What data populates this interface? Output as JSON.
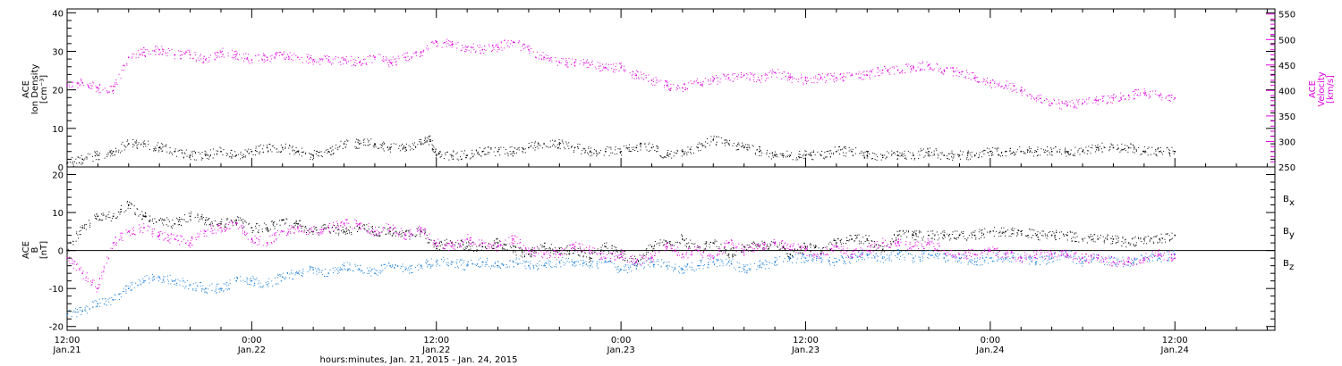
{
  "chart_data": [
    {
      "panel": "top",
      "type": "scatter",
      "xlabel": "hours:minutes, Jan. 21, 2015 - Jan. 24, 2015",
      "x_ticks": [
        {
          "time": "12:00",
          "date": "Jan.21",
          "hours": 0
        },
        {
          "time": "0:00",
          "date": "Jan.22",
          "hours": 12
        },
        {
          "time": "12:00",
          "date": "Jan.22",
          "hours": 24
        },
        {
          "time": "0:00",
          "date": "Jan.23",
          "hours": 36
        },
        {
          "time": "12:00",
          "date": "Jan.23",
          "hours": 48
        },
        {
          "time": "0:00",
          "date": "Jan.24",
          "hours": 60
        },
        {
          "time": "12:00",
          "date": "Jan.24",
          "hours": 72
        }
      ],
      "xlim_hours": [
        0,
        78.5
      ],
      "left_axis": {
        "title_lines": [
          "ACE",
          "Ion Density",
          "[cm⁻³]"
        ],
        "ylim": [
          0,
          41
        ],
        "ticks": [
          0,
          10,
          20,
          30,
          40
        ],
        "color": "#000000"
      },
      "right_axis": {
        "title_lines": [
          "ACE",
          "Velocity",
          "[km/s]"
        ],
        "ylim": [
          250,
          560
        ],
        "ticks": [
          250,
          300,
          350,
          400,
          450,
          500,
          550
        ],
        "color": "#e000e0"
      },
      "series": [
        {
          "name": "Ion Density",
          "axis": "left",
          "color": "#000000",
          "x_hours": [
            0,
            1,
            2,
            3,
            4,
            5,
            6,
            7,
            8,
            9,
            10,
            11,
            12,
            13,
            14,
            15,
            16,
            17,
            18,
            19,
            20,
            21,
            22,
            23,
            23.6,
            24,
            25,
            26,
            27,
            28,
            29,
            30,
            31,
            32,
            33,
            34,
            35,
            36,
            37,
            38,
            39,
            40,
            41,
            42,
            43,
            44,
            45,
            46,
            47,
            48,
            49,
            50,
            51,
            52,
            53,
            54,
            55,
            56,
            57,
            58,
            59,
            60,
            61,
            62,
            63,
            64,
            65,
            66,
            67,
            68,
            69,
            70,
            71,
            72
          ],
          "values": [
            1,
            2,
            3,
            4,
            6,
            6,
            5,
            4,
            3,
            3,
            4,
            3,
            4,
            5,
            5,
            4,
            3,
            4,
            6,
            6,
            6,
            5,
            5,
            6,
            7,
            3,
            3,
            3,
            4,
            4,
            4,
            5,
            6,
            6,
            5,
            4,
            4,
            4,
            5,
            5,
            3,
            4,
            5,
            7,
            6,
            5,
            4,
            3,
            3,
            3,
            3,
            4,
            4,
            3,
            3,
            3,
            3,
            4,
            3,
            3,
            3,
            4,
            4,
            4,
            4,
            4,
            4,
            4,
            5,
            5,
            5,
            4,
            4,
            4
          ]
        },
        {
          "name": "Velocity",
          "axis": "right",
          "color": "#e000e0",
          "x_hours": [
            0,
            1,
            2,
            3,
            4,
            5,
            6,
            7,
            8,
            9,
            10,
            11,
            12,
            13,
            14,
            15,
            16,
            17,
            18,
            19,
            20,
            21,
            22,
            23,
            24,
            25,
            26,
            27,
            28,
            29,
            30,
            31,
            32,
            33,
            34,
            35,
            36,
            37,
            38,
            39,
            40,
            41,
            42,
            43,
            44,
            45,
            46,
            47,
            48,
            49,
            50,
            51,
            52,
            53,
            54,
            55,
            56,
            57,
            58,
            59,
            60,
            61,
            62,
            63,
            64,
            65,
            66,
            67,
            68,
            69,
            70,
            71,
            72
          ],
          "values": [
            410,
            415,
            405,
            400,
            465,
            475,
            480,
            470,
            470,
            460,
            475,
            470,
            460,
            465,
            470,
            465,
            460,
            460,
            460,
            455,
            465,
            455,
            465,
            475,
            495,
            490,
            485,
            480,
            485,
            495,
            480,
            465,
            455,
            455,
            450,
            445,
            445,
            430,
            420,
            410,
            405,
            415,
            420,
            425,
            430,
            420,
            435,
            425,
            420,
            425,
            425,
            430,
            430,
            440,
            440,
            445,
            450,
            440,
            435,
            425,
            415,
            410,
            400,
            385,
            375,
            370,
            375,
            380,
            385,
            390,
            395,
            390,
            385
          ]
        }
      ]
    },
    {
      "panel": "bottom",
      "type": "scatter",
      "left_axis": {
        "title_lines": [
          "ACE",
          "B",
          "[nT]"
        ],
        "ylim": [
          -21,
          22
        ],
        "ticks": [
          -20,
          -10,
          0,
          10,
          20
        ],
        "color": "#000000"
      },
      "zero_line": true,
      "legend_position": "right",
      "series": [
        {
          "name": "Bx",
          "label_main": "B",
          "label_sub": "x",
          "color": "#000000",
          "x_hours": [
            0,
            1,
            2,
            3,
            4,
            5,
            6,
            7,
            8,
            9,
            10,
            11,
            12,
            13,
            14,
            15,
            16,
            17,
            18,
            19,
            20,
            21,
            22,
            23,
            24,
            25,
            26,
            27,
            28,
            29,
            30,
            31,
            32,
            33,
            34,
            35,
            36,
            37,
            38,
            39,
            40,
            41,
            42,
            43,
            44,
            45,
            46,
            47,
            48,
            49,
            50,
            51,
            52,
            53,
            54,
            55,
            56,
            57,
            58,
            59,
            60,
            61,
            62,
            63,
            64,
            65,
            66,
            67,
            68,
            69,
            70,
            71,
            72
          ],
          "values": [
            0,
            6,
            9,
            9,
            12,
            9,
            8,
            7,
            9,
            8,
            7,
            8,
            6,
            6,
            8,
            7,
            5,
            6,
            5,
            6,
            5,
            5,
            4,
            5,
            1,
            2,
            1,
            1,
            2,
            0,
            -1,
            1,
            0,
            0,
            -2,
            1,
            -1,
            -3,
            1,
            2,
            3,
            0,
            2,
            -1,
            1,
            1,
            2,
            -1,
            1,
            0,
            2,
            3,
            3,
            0,
            4,
            4,
            4,
            4,
            4,
            4,
            5,
            5,
            5,
            4,
            4,
            4,
            3,
            3,
            3,
            2,
            3,
            3,
            4
          ]
        },
        {
          "name": "By",
          "label_main": "B",
          "label_sub": "y",
          "color": "#1a7fd8",
          "x_hours": [
            0,
            1,
            2,
            3,
            4,
            5,
            6,
            7,
            8,
            9,
            10,
            11,
            12,
            13,
            14,
            15,
            16,
            17,
            18,
            19,
            20,
            21,
            22,
            23,
            24,
            25,
            26,
            27,
            28,
            29,
            30,
            31,
            32,
            33,
            34,
            35,
            36,
            37,
            38,
            39,
            40,
            41,
            42,
            43,
            44,
            45,
            46,
            47,
            48,
            49,
            50,
            51,
            52,
            53,
            54,
            55,
            56,
            57,
            58,
            59,
            60,
            61,
            62,
            63,
            64,
            65,
            66,
            67,
            68,
            69,
            70,
            71,
            72
          ],
          "values": [
            -17,
            -16,
            -14,
            -13,
            -10,
            -8,
            -7,
            -8,
            -9,
            -10,
            -10,
            -8,
            -8,
            -9,
            -7,
            -6,
            -5,
            -6,
            -4,
            -5,
            -6,
            -4,
            -5,
            -4,
            -3,
            -3,
            -4,
            -3,
            -4,
            -3,
            -4,
            -4,
            -3,
            -3,
            -4,
            -3,
            -5,
            -4,
            -3,
            -4,
            -5,
            -4,
            -3,
            -3,
            -5,
            -4,
            -3,
            -2,
            -2,
            -2,
            -3,
            -2,
            -1,
            -2,
            -1,
            -2,
            -1,
            -2,
            -2,
            -3,
            -2,
            -2,
            -2,
            -3,
            -2,
            -1,
            -3,
            -2,
            -3,
            -3,
            -2,
            -2,
            -1
          ]
        },
        {
          "name": "Bz",
          "label_main": "B",
          "label_sub": "z",
          "color": "#e000e0",
          "x_hours": [
            0,
            1,
            2,
            3,
            4,
            5,
            6,
            7,
            8,
            9,
            10,
            11,
            12,
            13,
            14,
            15,
            16,
            17,
            18,
            19,
            20,
            21,
            22,
            23,
            24,
            25,
            26,
            27,
            28,
            29,
            30,
            31,
            32,
            33,
            34,
            35,
            36,
            37,
            38,
            39,
            40,
            41,
            42,
            43,
            44,
            45,
            46,
            47,
            48,
            49,
            50,
            51,
            52,
            53,
            54,
            55,
            56,
            57,
            58,
            59,
            60,
            61,
            62,
            63,
            64,
            65,
            66,
            67,
            68,
            69,
            70,
            71,
            72
          ],
          "values": [
            -2,
            -6,
            -10,
            2,
            5,
            6,
            4,
            3,
            2,
            5,
            6,
            7,
            3,
            2,
            5,
            6,
            5,
            6,
            7,
            7,
            5,
            6,
            4,
            6,
            2,
            1,
            3,
            2,
            1,
            3,
            0,
            -1,
            -1,
            1,
            0,
            -2,
            -1,
            -3,
            -2,
            1,
            -1,
            0,
            -2,
            2,
            0,
            1,
            2,
            1,
            0,
            -1,
            1,
            -1,
            0,
            2,
            2,
            1,
            2,
            0,
            -1,
            -1,
            0,
            -1,
            -2,
            -1,
            -1,
            -1,
            -2,
            -2,
            -3,
            -3,
            -2,
            -1,
            -2
          ]
        }
      ]
    }
  ]
}
